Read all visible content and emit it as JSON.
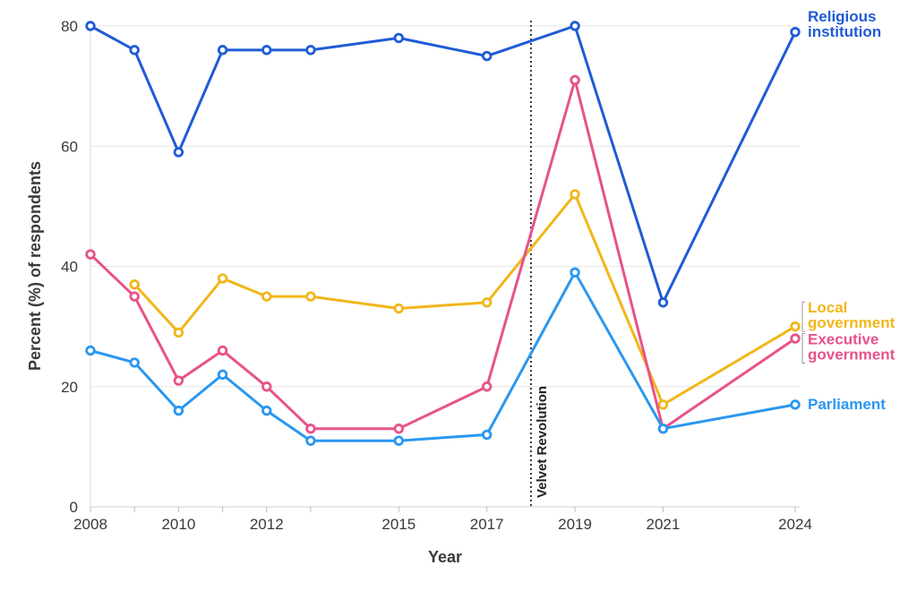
{
  "chart_data": {
    "type": "line",
    "xlabel": "Year",
    "ylabel": "Percent (%) of respondents",
    "xlim": [
      2008,
      2024
    ],
    "ylim": [
      0,
      80
    ],
    "y_ticks": [
      0,
      20,
      40,
      60,
      80
    ],
    "x_tick_labels": [
      2008,
      2010,
      2012,
      2015,
      2017,
      2019,
      2021,
      2024
    ],
    "x_minor_ticks": [
      2009,
      2011,
      2013
    ],
    "grid": "horizontal",
    "series": [
      {
        "name": "Religious institution",
        "color": "#1f5bd6",
        "label_lines": [
          "Religious",
          "institution"
        ],
        "points": [
          [
            2008,
            80
          ],
          [
            2009,
            76
          ],
          [
            2010,
            59
          ],
          [
            2011,
            76
          ],
          [
            2012,
            76
          ],
          [
            2013,
            76
          ],
          [
            2015,
            78
          ],
          [
            2017,
            75
          ],
          [
            2019,
            80
          ],
          [
            2021,
            34
          ],
          [
            2024,
            79
          ]
        ]
      },
      {
        "name": "Local government",
        "color": "#f2b619",
        "label_lines": [
          "Local",
          "government"
        ],
        "points": [
          [
            2009,
            37
          ],
          [
            2010,
            29
          ],
          [
            2011,
            38
          ],
          [
            2012,
            35
          ],
          [
            2013,
            35
          ],
          [
            2015,
            33
          ],
          [
            2017,
            34
          ],
          [
            2019,
            52
          ],
          [
            2021,
            17
          ],
          [
            2024,
            30
          ]
        ]
      },
      {
        "name": "Executive government",
        "color": "#e8528a",
        "label_lines": [
          "Executive",
          "government"
        ],
        "points": [
          [
            2008,
            42
          ],
          [
            2009,
            35
          ],
          [
            2010,
            21
          ],
          [
            2011,
            26
          ],
          [
            2012,
            20
          ],
          [
            2013,
            13
          ],
          [
            2015,
            13
          ],
          [
            2017,
            20
          ],
          [
            2019,
            71
          ],
          [
            2021,
            13
          ],
          [
            2024,
            28
          ]
        ]
      },
      {
        "name": "Parliament",
        "color": "#2a97f0",
        "label_lines": [
          "Parliament"
        ],
        "points": [
          [
            2008,
            26
          ],
          [
            2009,
            24
          ],
          [
            2010,
            16
          ],
          [
            2011,
            22
          ],
          [
            2012,
            16
          ],
          [
            2013,
            11
          ],
          [
            2015,
            11
          ],
          [
            2017,
            12
          ],
          [
            2019,
            39
          ],
          [
            2021,
            13
          ],
          [
            2024,
            17
          ]
        ]
      }
    ],
    "annotations": [
      {
        "type": "vline",
        "x": 2018,
        "label": "Velvet Revolution"
      }
    ]
  }
}
